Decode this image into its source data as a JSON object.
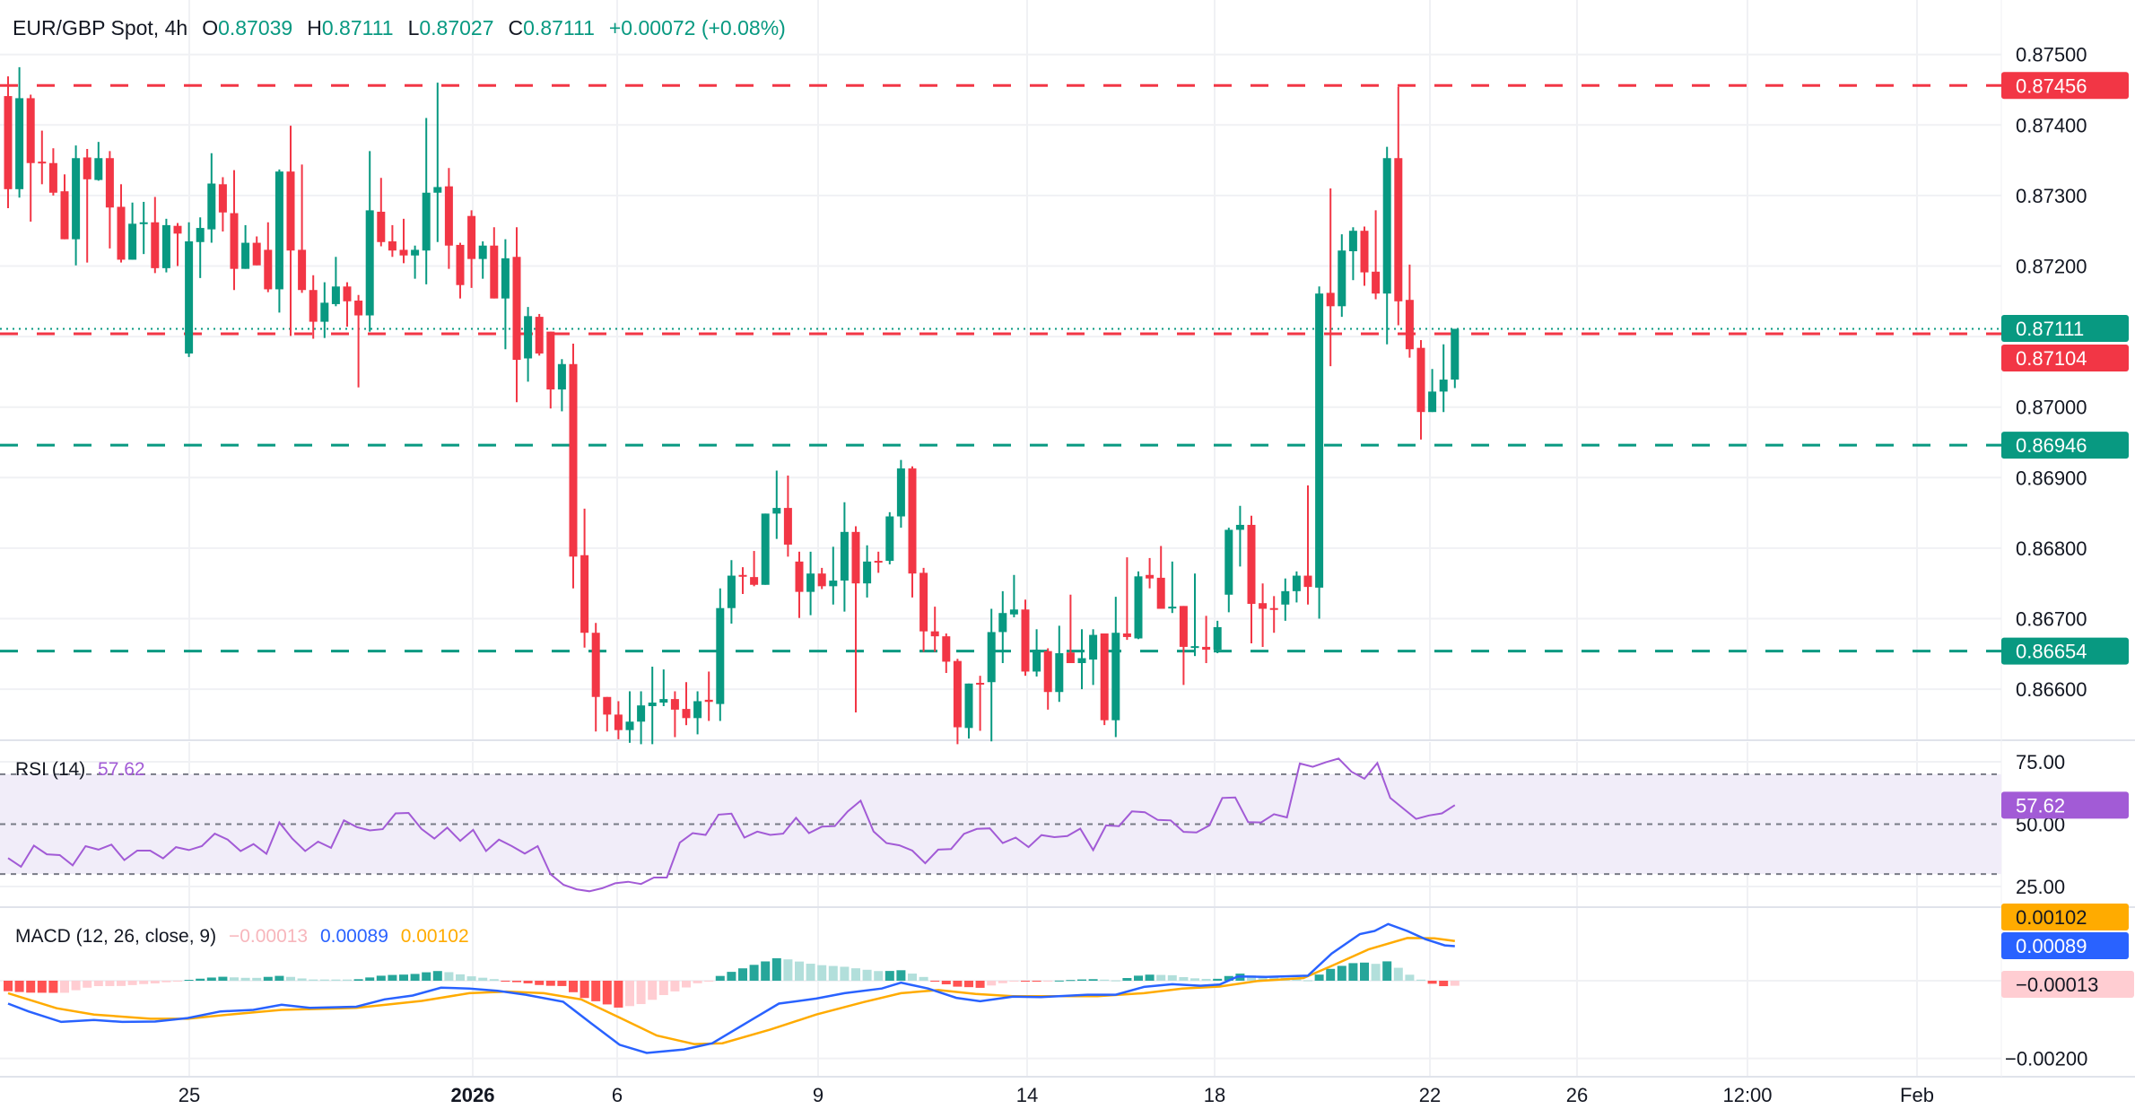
{
  "header": {
    "symbol": "EUR/GBP Spot, 4h",
    "o_label": "O",
    "o_value": "0.87039",
    "h_label": "H",
    "h_value": "0.87111",
    "l_label": "L",
    "l_value": "0.87027",
    "c_label": "C",
    "c_value": "0.87111",
    "change": "+0.00072 (+0.08%)"
  },
  "colors": {
    "up": "#089981",
    "down": "#f23645",
    "rsi": "#a25bd6",
    "macd": "#2962ff",
    "signal": "#ffab00",
    "hist_up_strong": "#26a69a",
    "hist_up_weak": "#b2dfdb",
    "hist_down_strong": "#ff5252",
    "hist_down_weak": "#ffcdd2"
  },
  "price_axis": {
    "ticks": [
      "0.87500",
      "0.87400",
      "0.87300",
      "0.87200",
      "0.87000",
      "0.86900",
      "0.86800",
      "0.86700",
      "0.86600"
    ],
    "tick_values": [
      0.875,
      0.874,
      0.873,
      0.872,
      0.87,
      0.869,
      0.868,
      0.867,
      0.866
    ],
    "grid_values": [
      0.875,
      0.874,
      0.873,
      0.872,
      0.871,
      0.87,
      0.869,
      0.868,
      0.867,
      0.866
    ]
  },
  "levels": [
    {
      "value": 0.87456,
      "label": "0.87456",
      "color": "#f23645",
      "style": "dashed"
    },
    {
      "value": 0.87104,
      "label": "0.87104",
      "color": "#f23645",
      "style": "dashed"
    },
    {
      "value": 0.86946,
      "label": "0.86946",
      "color": "#089981",
      "style": "dashed"
    },
    {
      "value": 0.86654,
      "label": "0.86654",
      "color": "#089981",
      "style": "dashed"
    }
  ],
  "last_price": {
    "value": 0.87111,
    "label": "0.87111",
    "color": "#089981",
    "style": "dotted"
  },
  "time_axis": [
    "25",
    "2026",
    "6",
    "9",
    "14",
    "18",
    "22",
    "26",
    "12:00",
    "Feb"
  ],
  "rsi": {
    "title": "RSI (14)",
    "value": "57.62",
    "axis": [
      "75.00",
      "50.00",
      "25.00"
    ],
    "bands": [
      70,
      50,
      30
    ],
    "series": [
      36.4,
      32.9,
      41.4,
      37.9,
      37.6,
      33.5,
      41.2,
      39.8,
      41.8,
      35.6,
      39.4,
      39.4,
      36.3,
      40.8,
      39.6,
      41.2,
      46.2,
      43.8,
      39.2,
      42.0,
      38.1,
      50.7,
      44.2,
      39.2,
      43.0,
      40.5,
      51.5,
      48.8,
      47.5,
      48.0,
      54.3,
      54.5,
      48.1,
      44.2,
      48.6,
      43.3,
      47.7,
      39.2,
      43.8,
      41.2,
      38.2,
      41.2,
      29.9,
      25.7,
      23.9,
      23.1,
      24.3,
      26.3,
      26.9,
      26.0,
      28.6,
      28.6,
      42.6,
      46.4,
      45.7,
      53.8,
      54.2,
      44.6,
      47.0,
      45.7,
      46.2,
      52.5,
      46.4,
      49.0,
      49.2,
      55.1,
      59.4,
      47.1,
      42.4,
      41.5,
      39.4,
      34.3,
      39.8,
      40.0,
      46.1,
      48.1,
      48.3,
      42.4,
      44.6,
      40.8,
      45.6,
      44.8,
      45.2,
      48.2,
      39.6,
      49.5,
      49.2,
      55.1,
      54.8,
      51.7,
      51.5,
      46.9,
      46.7,
      49.5,
      60.5,
      60.7,
      50.8,
      50.7,
      54.0,
      52.7,
      74.3,
      73.0,
      74.8,
      76.3,
      71.0,
      68.2,
      74.5,
      60.5,
      56.3,
      52.1,
      53.5,
      54.3,
      57.62
    ]
  },
  "macd": {
    "title": "MACD (12, 26, close, 9)",
    "hist_value": "−0.00013",
    "macd_value": "0.00089",
    "signal_value": "0.00102",
    "axis_label": "−0.00200",
    "macd_line": [
      [
        1,
        -0.00059
      ],
      [
        2.8,
        -0.00079
      ],
      [
        5.7,
        -0.00106
      ],
      [
        8.6,
        -0.00101
      ],
      [
        11.1,
        -0.00106
      ],
      [
        14,
        -0.00105
      ],
      [
        16.9,
        -0.00096
      ],
      [
        19.8,
        -0.00079
      ],
      [
        22.7,
        -0.00075
      ],
      [
        25.2,
        -0.00062
      ],
      [
        27.7,
        -0.0007
      ],
      [
        31.8,
        -0.00067
      ],
      [
        34.3,
        -0.00048
      ],
      [
        36.8,
        -0.00038
      ],
      [
        39.3,
        -0.00018
      ],
      [
        41.8,
        -0.0002
      ],
      [
        44.3,
        -0.00026
      ],
      [
        46.8,
        -0.00036
      ],
      [
        50.1,
        -0.00054
      ],
      [
        52.6,
        -0.0011
      ],
      [
        55.1,
        -0.00165
      ],
      [
        57.5,
        -0.00186
      ],
      [
        60.8,
        -0.00177
      ],
      [
        63.3,
        -0.00161
      ],
      [
        66.7,
        -0.00102
      ],
      [
        69.2,
        -0.00059
      ],
      [
        72.5,
        -0.00046
      ],
      [
        75,
        -0.00032
      ],
      [
        78.3,
        -0.0002
      ],
      [
        80,
        -5e-05
      ],
      [
        82.4,
        -0.0002
      ],
      [
        84.9,
        -0.00044
      ],
      [
        87,
        -0.00053
      ],
      [
        89.9,
        -0.00041
      ],
      [
        92.4,
        -0.00042
      ],
      [
        96.5,
        -0.00036
      ],
      [
        99,
        -0.00036
      ],
      [
        101.5,
        -0.00016
      ],
      [
        104,
        -9e-05
      ],
      [
        106.5,
        -0.00013
      ],
      [
        108.2,
        -0.0001
      ],
      [
        109.8,
        0.00011
      ],
      [
        112.3,
        0.0001
      ],
      [
        116,
        0.00013
      ],
      [
        118.1,
        0.0007
      ],
      [
        120.6,
        0.0012
      ],
      [
        121.9,
        0.00128
      ],
      [
        123.1,
        0.00146
      ],
      [
        124.8,
        0.00128
      ],
      [
        126.4,
        0.00107
      ],
      [
        128.1,
        0.00091
      ],
      [
        129,
        0.00089
      ]
    ],
    "signal_line": [
      [
        1,
        -0.00032
      ],
      [
        5.3,
        -0.00071
      ],
      [
        8.6,
        -0.00087
      ],
      [
        13.6,
        -0.00098
      ],
      [
        16.9,
        -0.00098
      ],
      [
        21,
        -0.00086
      ],
      [
        25.2,
        -0.00075
      ],
      [
        31.8,
        -0.0007
      ],
      [
        37.6,
        -0.00052
      ],
      [
        41.8,
        -0.00032
      ],
      [
        45.1,
        -0.00028
      ],
      [
        48.4,
        -0.00032
      ],
      [
        51.7,
        -0.00048
      ],
      [
        55.1,
        -0.00095
      ],
      [
        58.4,
        -0.00141
      ],
      [
        61.7,
        -0.00163
      ],
      [
        64.2,
        -0.00161
      ],
      [
        68.4,
        -0.00126
      ],
      [
        72.5,
        -0.00087
      ],
      [
        76.7,
        -0.00055
      ],
      [
        80,
        -0.00032
      ],
      [
        83.3,
        -0.00024
      ],
      [
        86.6,
        -0.00034
      ],
      [
        89.9,
        -0.0004
      ],
      [
        97.4,
        -0.0004
      ],
      [
        101.5,
        -0.00032
      ],
      [
        104.9,
        -0.0002
      ],
      [
        108.2,
        -0.00015
      ],
      [
        111.5,
        -1e-05
      ],
      [
        115.6,
        7e-05
      ],
      [
        118.1,
        0.00038
      ],
      [
        121.4,
        0.00081
      ],
      [
        124.8,
        0.0011
      ],
      [
        127.2,
        0.00109
      ],
      [
        129,
        0.00102
      ]
    ]
  },
  "chart_data": {
    "type": "candlestick",
    "title": "EUR/GBP Spot, 4h",
    "ohlc_fields": [
      "open",
      "high",
      "low",
      "close"
    ],
    "ylim": [
      0.8652,
      0.8755
    ],
    "grid": true,
    "candles": [
      [
        0.87441,
        0.87469,
        0.87282,
        0.87309
      ],
      [
        0.87309,
        0.87482,
        0.87297,
        0.87438
      ],
      [
        0.87438,
        0.87443,
        0.87263,
        0.87346
      ],
      [
        0.87348,
        0.87392,
        0.87316,
        0.87346
      ],
      [
        0.87346,
        0.87367,
        0.873,
        0.87304
      ],
      [
        0.87306,
        0.8733,
        0.87238,
        0.87238
      ],
      [
        0.87238,
        0.87371,
        0.87201,
        0.87353
      ],
      [
        0.87354,
        0.87366,
        0.87205,
        0.87323
      ],
      [
        0.87322,
        0.87376,
        0.87321,
        0.87353
      ],
      [
        0.87353,
        0.87363,
        0.87225,
        0.87283
      ],
      [
        0.87284,
        0.87316,
        0.87205,
        0.87209
      ],
      [
        0.87209,
        0.8729,
        0.87209,
        0.8726
      ],
      [
        0.8726,
        0.87291,
        0.87217,
        0.87262
      ],
      [
        0.87262,
        0.87298,
        0.8719,
        0.87197
      ],
      [
        0.87197,
        0.87267,
        0.87191,
        0.87258
      ],
      [
        0.87257,
        0.87261,
        0.872,
        0.87246
      ],
      [
        0.87076,
        0.87262,
        0.87071,
        0.87235
      ],
      [
        0.87234,
        0.87269,
        0.87183,
        0.87254
      ],
      [
        0.87252,
        0.8736,
        0.87233,
        0.87317
      ],
      [
        0.87316,
        0.87326,
        0.87249,
        0.87276
      ],
      [
        0.87275,
        0.87336,
        0.87166,
        0.87196
      ],
      [
        0.87196,
        0.87258,
        0.87196,
        0.87233
      ],
      [
        0.87233,
        0.87242,
        0.87201,
        0.87201
      ],
      [
        0.87223,
        0.87262,
        0.87163,
        0.87167
      ],
      [
        0.87167,
        0.87337,
        0.87134,
        0.87334
      ],
      [
        0.87334,
        0.87399,
        0.87101,
        0.87222
      ],
      [
        0.87223,
        0.87344,
        0.87162,
        0.87166
      ],
      [
        0.87166,
        0.87187,
        0.87097,
        0.87121
      ],
      [
        0.87121,
        0.87177,
        0.87098,
        0.87148
      ],
      [
        0.87146,
        0.87213,
        0.87143,
        0.87171
      ],
      [
        0.87171,
        0.87177,
        0.87114,
        0.8715
      ],
      [
        0.87151,
        0.87159,
        0.87028,
        0.8713
      ],
      [
        0.8713,
        0.87363,
        0.87107,
        0.87279
      ],
      [
        0.87277,
        0.87325,
        0.87228,
        0.87234
      ],
      [
        0.87235,
        0.87258,
        0.87213,
        0.87222
      ],
      [
        0.87223,
        0.87267,
        0.87204,
        0.87215
      ],
      [
        0.87215,
        0.87229,
        0.87182,
        0.87223
      ],
      [
        0.87222,
        0.8741,
        0.87174,
        0.87304
      ],
      [
        0.87304,
        0.8746,
        0.87234,
        0.87312
      ],
      [
        0.87313,
        0.87339,
        0.87196,
        0.87229
      ],
      [
        0.8723,
        0.87233,
        0.87154,
        0.87173
      ],
      [
        0.87271,
        0.87279,
        0.87169,
        0.8721
      ],
      [
        0.8721,
        0.87235,
        0.87182,
        0.87229
      ],
      [
        0.87229,
        0.87255,
        0.87154,
        0.87154
      ],
      [
        0.87154,
        0.87238,
        0.87082,
        0.87211
      ],
      [
        0.87213,
        0.87255,
        0.87007,
        0.87067
      ],
      [
        0.87069,
        0.87142,
        0.87036,
        0.87129
      ],
      [
        0.87128,
        0.87132,
        0.87073,
        0.87076
      ],
      [
        0.87107,
        0.87107,
        0.86998,
        0.87025
      ],
      [
        0.87025,
        0.87068,
        0.86994,
        0.87061
      ],
      [
        0.87061,
        0.8709,
        0.86743,
        0.86788
      ],
      [
        0.8679,
        0.86856,
        0.86659,
        0.8668
      ],
      [
        0.8668,
        0.86694,
        0.8654,
        0.86589
      ],
      [
        0.86589,
        0.86589,
        0.8654,
        0.86564
      ],
      [
        0.86564,
        0.86583,
        0.86529,
        0.86542
      ],
      [
        0.86542,
        0.86597,
        0.86524,
        0.86554
      ],
      [
        0.86554,
        0.86597,
        0.86522,
        0.86577
      ],
      [
        0.86576,
        0.86632,
        0.86522,
        0.86581
      ],
      [
        0.86581,
        0.86628,
        0.86576,
        0.86586
      ],
      [
        0.86586,
        0.86597,
        0.86532,
        0.86571
      ],
      [
        0.86572,
        0.8661,
        0.86549,
        0.86559
      ],
      [
        0.86559,
        0.86597,
        0.86536,
        0.86583
      ],
      [
        0.86585,
        0.86625,
        0.86555,
        0.86582
      ],
      [
        0.86579,
        0.86743,
        0.86555,
        0.86715
      ],
      [
        0.86715,
        0.86783,
        0.86693,
        0.86761
      ],
      [
        0.86762,
        0.86773,
        0.86735,
        0.8676
      ],
      [
        0.86759,
        0.86796,
        0.86746,
        0.86748
      ],
      [
        0.86748,
        0.86849,
        0.86748,
        0.86849
      ],
      [
        0.86849,
        0.8691,
        0.86813,
        0.86857
      ],
      [
        0.86857,
        0.86903,
        0.86788,
        0.86805
      ],
      [
        0.86781,
        0.86795,
        0.86701,
        0.86738
      ],
      [
        0.86738,
        0.86795,
        0.86705,
        0.86764
      ],
      [
        0.86764,
        0.86772,
        0.86742,
        0.86746
      ],
      [
        0.86746,
        0.86802,
        0.8672,
        0.86754
      ],
      [
        0.86754,
        0.86865,
        0.8671,
        0.86823
      ],
      [
        0.86823,
        0.86831,
        0.86567,
        0.8675
      ],
      [
        0.8675,
        0.86804,
        0.8673,
        0.86781
      ],
      [
        0.86782,
        0.86795,
        0.86765,
        0.8678
      ],
      [
        0.86782,
        0.86851,
        0.86777,
        0.86845
      ],
      [
        0.86845,
        0.86925,
        0.86829,
        0.86913
      ],
      [
        0.86913,
        0.86916,
        0.8673,
        0.86764
      ],
      [
        0.86765,
        0.86772,
        0.86653,
        0.86682
      ],
      [
        0.86682,
        0.86717,
        0.86653,
        0.86675
      ],
      [
        0.86675,
        0.86679,
        0.86623,
        0.86639
      ],
      [
        0.8664,
        0.86643,
        0.86522,
        0.86546
      ],
      [
        0.86545,
        0.86608,
        0.8653,
        0.86608
      ],
      [
        0.86609,
        0.86619,
        0.86541,
        0.86607
      ],
      [
        0.8661,
        0.86714,
        0.86526,
        0.86681
      ],
      [
        0.86681,
        0.86739,
        0.86637,
        0.86708
      ],
      [
        0.86706,
        0.86762,
        0.86702,
        0.86713
      ],
      [
        0.86713,
        0.86727,
        0.86619,
        0.86625
      ],
      [
        0.86625,
        0.86685,
        0.86618,
        0.86656
      ],
      [
        0.86654,
        0.86658,
        0.86571,
        0.86596
      ],
      [
        0.86596,
        0.8669,
        0.86582,
        0.86651
      ],
      [
        0.86652,
        0.86734,
        0.86637,
        0.86637
      ],
      [
        0.86637,
        0.86685,
        0.866,
        0.86644
      ],
      [
        0.86642,
        0.86685,
        0.86606,
        0.86677
      ],
      [
        0.86679,
        0.86679,
        0.86549,
        0.86556
      ],
      [
        0.86556,
        0.86731,
        0.86532,
        0.8668
      ],
      [
        0.86679,
        0.86787,
        0.8667,
        0.86674
      ],
      [
        0.86672,
        0.86767,
        0.86671,
        0.8676
      ],
      [
        0.86762,
        0.86786,
        0.86743,
        0.86757
      ],
      [
        0.86758,
        0.86803,
        0.86714,
        0.86714
      ],
      [
        0.86715,
        0.86781,
        0.86708,
        0.86717
      ],
      [
        0.86718,
        0.86718,
        0.86606,
        0.8666
      ],
      [
        0.86659,
        0.86764,
        0.86647,
        0.86661
      ],
      [
        0.8666,
        0.86704,
        0.86637,
        0.86656
      ],
      [
        0.86656,
        0.86697,
        0.86651,
        0.86688
      ],
      [
        0.86734,
        0.86829,
        0.86709,
        0.86826
      ],
      [
        0.86826,
        0.8686,
        0.86774,
        0.86833
      ],
      [
        0.86833,
        0.86846,
        0.86665,
        0.86721
      ],
      [
        0.86722,
        0.8675,
        0.8666,
        0.86714
      ],
      [
        0.86715,
        0.86732,
        0.8668,
        0.86713
      ],
      [
        0.8672,
        0.86757,
        0.86697,
        0.86739
      ],
      [
        0.86739,
        0.86767,
        0.86723,
        0.86761
      ],
      [
        0.86761,
        0.86889,
        0.8672,
        0.86745
      ],
      [
        0.86744,
        0.87171,
        0.867,
        0.87161
      ],
      [
        0.87162,
        0.8731,
        0.87058,
        0.87143
      ],
      [
        0.87143,
        0.87245,
        0.87128,
        0.87222
      ],
      [
        0.87221,
        0.87255,
        0.8718,
        0.8725
      ],
      [
        0.8725,
        0.87256,
        0.87172,
        0.87191
      ],
      [
        0.87192,
        0.87279,
        0.87153,
        0.87161
      ],
      [
        0.87161,
        0.87369,
        0.87089,
        0.87353
      ],
      [
        0.87353,
        0.87454,
        0.87116,
        0.8715
      ],
      [
        0.87152,
        0.87202,
        0.8707,
        0.87082
      ],
      [
        0.87084,
        0.87095,
        0.86954,
        0.86993
      ],
      [
        0.86993,
        0.87054,
        0.86993,
        0.87022
      ],
      [
        0.87022,
        0.87089,
        0.86993,
        0.87039
      ],
      [
        0.87039,
        0.87111,
        0.87027,
        0.87111
      ]
    ]
  }
}
